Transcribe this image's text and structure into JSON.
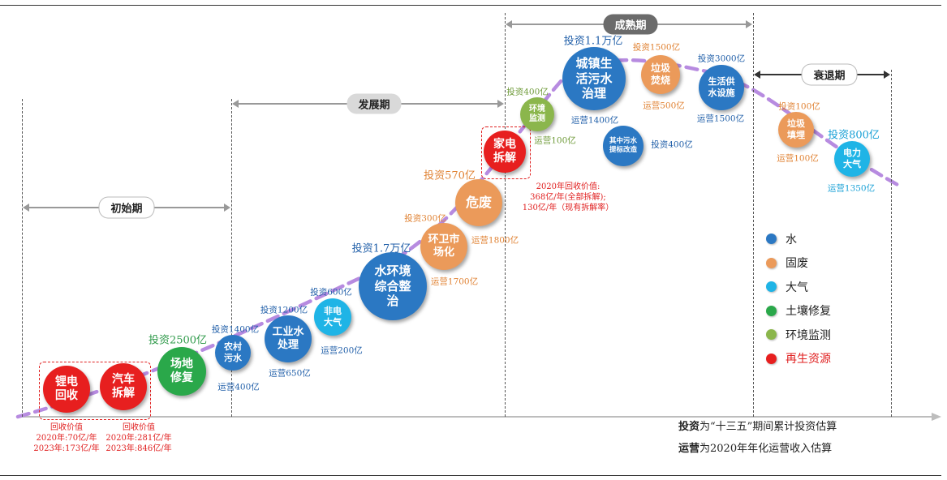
{
  "phases": [
    {
      "label": "初始期"
    },
    {
      "label": "发展期"
    },
    {
      "label": "成熟期"
    },
    {
      "label": "衰退期"
    }
  ],
  "nodes": [
    {
      "label": "锂电回收",
      "lines": [
        "锂电",
        "回收"
      ],
      "category": "recycle"
    },
    {
      "label": "汽车拆解",
      "lines": [
        "汽车",
        "拆解"
      ],
      "category": "recycle"
    },
    {
      "label": "场地修复",
      "lines": [
        "场地",
        "修复"
      ],
      "category": "soil",
      "top": "投资2500亿"
    },
    {
      "label": "农村污水",
      "lines": [
        "农村",
        "污水"
      ],
      "category": "water",
      "top": "投资1400亿",
      "bottom": "运营400亿"
    },
    {
      "label": "工业水处理",
      "lines": [
        "工业水",
        "处理"
      ],
      "category": "water",
      "top": "投资1200亿",
      "bottom": "运营650亿"
    },
    {
      "label": "非电大气",
      "lines": [
        "非电",
        "大气"
      ],
      "category": "air",
      "top": "投资600亿",
      "bottom": "运营200亿"
    },
    {
      "label": "水环境综合整治",
      "lines": [
        "水环境",
        "综合整",
        "治"
      ],
      "category": "water",
      "top": "投资1.7万亿"
    },
    {
      "label": "环卫市场化",
      "lines": [
        "环卫市",
        "场化"
      ],
      "category": "waste",
      "top": "投资300亿",
      "bottom": "运营1700亿"
    },
    {
      "label": "危废",
      "lines": [
        "危废"
      ],
      "category": "waste",
      "top": "投资570亿",
      "bottom": "运营1800亿"
    },
    {
      "label": "家电拆解",
      "lines": [
        "家电",
        "拆解"
      ],
      "category": "recycle"
    },
    {
      "label": "环境监测",
      "lines": [
        "环境",
        "监测"
      ],
      "category": "monitor",
      "top": "投资400亿",
      "bottom": "运营100亿"
    },
    {
      "label": "城镇生活污水治理",
      "lines": [
        "城镇生",
        "活污水",
        "治理"
      ],
      "category": "water",
      "top": "投资1.1万亿",
      "bottom": "运营1400亿"
    },
    {
      "label": "其中污水提标改造",
      "lines": [
        "其中污水",
        "提标改造"
      ],
      "category": "water",
      "side": "投资400亿"
    },
    {
      "label": "垃圾焚烧",
      "lines": [
        "垃圾",
        "焚烧"
      ],
      "category": "waste",
      "top": "投资1500亿",
      "bottom": "运营500亿"
    },
    {
      "label": "生活供水设施",
      "lines": [
        "生活供",
        "水设施"
      ],
      "category": "water",
      "top": "投资3000亿",
      "bottom": "运营1500亿"
    },
    {
      "label": "垃圾填埋",
      "lines": [
        "垃圾",
        "填埋"
      ],
      "category": "waste",
      "top": "投资100亿",
      "bottom": "运营100亿"
    },
    {
      "label": "电力大气",
      "lines": [
        "电力",
        "大气"
      ],
      "category": "air",
      "top": "投资800亿",
      "bottom": "运营1350亿"
    }
  ],
  "notes": {
    "lithium": [
      "回收价值",
      "2020年:70亿/年",
      "2023年:173亿/年"
    ],
    "auto": [
      "回收价值",
      "2020年:281亿/年",
      "2023年:846亿/年"
    ],
    "appliance": [
      "2020年回收价值:",
      "368亿/年(全部拆解);",
      "130亿/年（现有拆解率）"
    ]
  },
  "legend": [
    {
      "label": "水",
      "color": "#2b78c3"
    },
    {
      "label": "固废",
      "color": "#eb9a5a"
    },
    {
      "label": "大气",
      "color": "#1fb4e6"
    },
    {
      "label": "土壤修复",
      "color": "#2aa84a"
    },
    {
      "label": "环境监测",
      "color": "#8bb64c"
    },
    {
      "label": "再生资源",
      "color": "#e71f1f"
    }
  ],
  "footnotes": {
    "line1_bold": "投资",
    "line1_rest": "为“十三五”期间累计投资估算",
    "line2_bold": "运营",
    "line2_rest": "为2020年年化运营收入估算"
  },
  "colors": {
    "water": "#2b78c3",
    "waste": "#eb9a5a",
    "air": "#1fb4e6",
    "soil": "#2aa84a",
    "monitor": "#8bb64c",
    "recycle": "#e71f1f",
    "curve": "#b78be0"
  }
}
